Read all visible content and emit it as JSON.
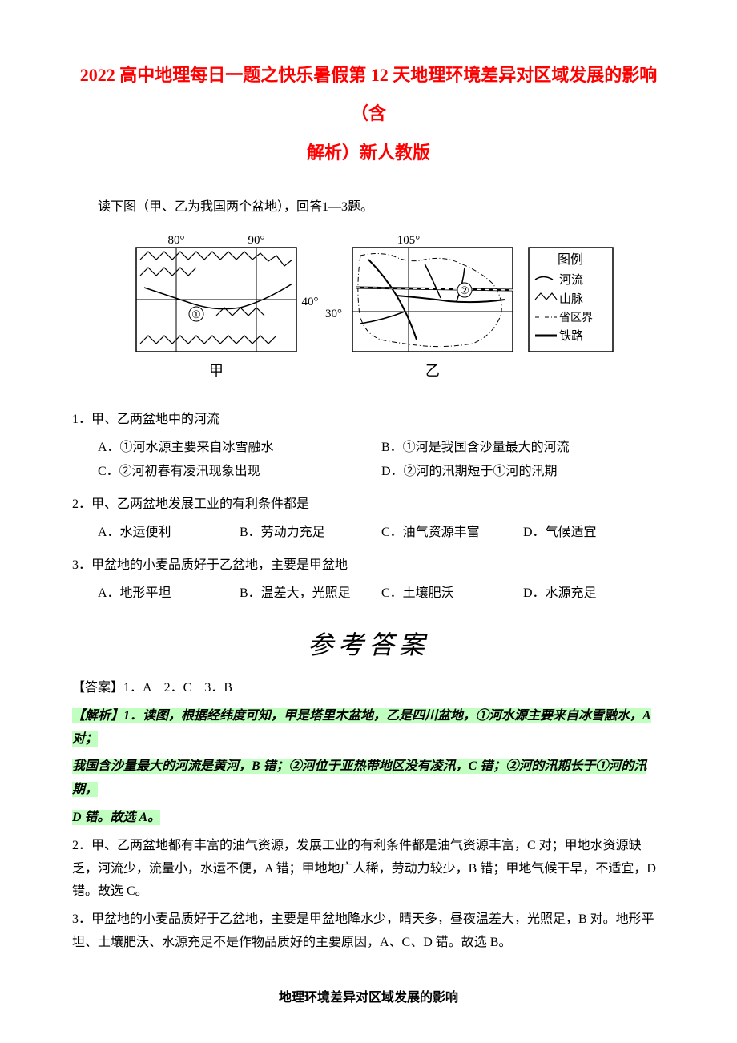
{
  "title_line1": "2022 高中地理每日一题之快乐暑假第 12 天地理环境差异对区域发展的影响（含",
  "title_line2": "解析）新人教版",
  "intro": "读下图（甲、乙为我国两个盆地），回答1—3题。",
  "figure": {
    "map1_lon1": "80°",
    "map1_lon2": "90°",
    "map1_lat": "40°",
    "map1_marker": "①",
    "map1_label": "甲",
    "map2_lon": "105°",
    "map2_lat": "30°",
    "map2_marker": "②",
    "map2_label": "乙",
    "legend_title": "图例",
    "legend_items": [
      {
        "label": "河流",
        "type": "river"
      },
      {
        "label": "山脉",
        "type": "mountain"
      },
      {
        "label": "省区界",
        "type": "boundary"
      },
      {
        "label": "铁路",
        "type": "railway"
      }
    ],
    "colors": {
      "stroke": "#000000",
      "bg": "#ffffff"
    }
  },
  "questions": [
    {
      "stem": "1．甲、乙两盆地中的河流",
      "layout": "two-col",
      "options": [
        "A．①河水源主要来自冰雪融水",
        "B．①河是我国含沙量最大的河流",
        "C．②河初春有凌汛现象出现",
        "D．②河的汛期短于①河的汛期"
      ]
    },
    {
      "stem": "2．甲、乙两盆地发展工业的有利条件都是",
      "layout": "four-col",
      "options": [
        "A．水运便利",
        "B．劳动力充足",
        "C．油气资源丰富",
        "D．气候适宜"
      ]
    },
    {
      "stem": "3．甲盆地的小麦品质好于乙盆地，主要是甲盆地",
      "layout": "four-col",
      "options": [
        "A．地形平坦",
        "B．温差大，光照足",
        "C．土壤肥沃",
        "D．水源充足"
      ]
    }
  ],
  "answer_header": "参考答案",
  "answer_key": "【答案】1．A　2．C　3．B",
  "analysis_1a": "【解析】1．读图，根据经纬度可知，甲是塔里木盆地，乙是四川盆地，①河水源主要来自冰雪融水，A 对；",
  "analysis_1b": "我国含沙量最大的河流是黄河，B 错；②河位于亚热带地区没有凌汛，C 错；②河的汛期长于①河的汛期，",
  "analysis_1c": "D 错。故选 A。",
  "analysis_2": "2．甲、乙两盆地都有丰富的油气资源，发展工业的有利条件都是油气资源丰富，C 对；甲地水资源缺乏，河流少，流量小，水运不便，A 错；甲地地广人稀，劳动力较少，B 错；甲地气候干旱，不适宜，D 错。故选 C。",
  "analysis_3": "3．甲盆地的小麦品质好于乙盆地，主要是甲盆地降水少，晴天多，昼夜温差大，光照足，B 对。地形平坦、土壤肥沃、水源充足不是作物品质好的主要原因，A、C、D 错。故选 B。",
  "bottom_heading": "地理环境差异对区域发展的影响"
}
